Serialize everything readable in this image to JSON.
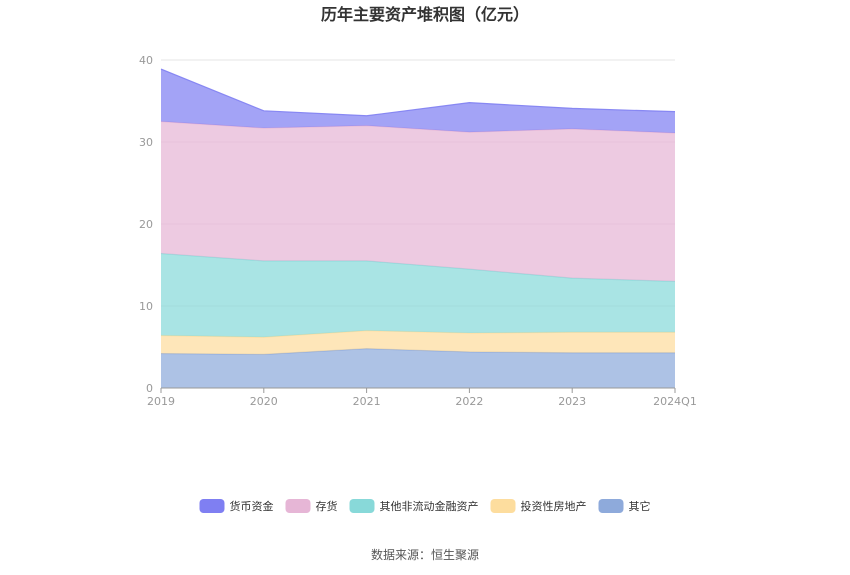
{
  "chart_data": {
    "type": "area",
    "stacked": true,
    "title": "历年主要资产堆积图（亿元）",
    "xlabel": "",
    "ylabel": "",
    "x": [
      "2019",
      "2020",
      "2021",
      "2022",
      "2023",
      "2024Q1"
    ],
    "ylim": [
      0,
      40
    ],
    "yticks": [
      "0",
      "10",
      "20",
      "30",
      "40"
    ],
    "grid": true,
    "legend_position": "bottom",
    "series": [
      {
        "name": "其它",
        "color": "#8eaadb",
        "values": [
          4.2,
          4.1,
          4.8,
          4.4,
          4.3,
          4.3
        ]
      },
      {
        "name": "投资性房地产",
        "color": "#fddd9e",
        "values": [
          2.2,
          2.1,
          2.2,
          2.3,
          2.5,
          2.5
        ]
      },
      {
        "name": "其他非流动金融资产",
        "color": "#88d9d9",
        "values": [
          10.0,
          9.3,
          8.5,
          7.8,
          6.6,
          6.2
        ]
      },
      {
        "name": "存货",
        "color": "#e6b6d6",
        "values": [
          16.1,
          16.2,
          16.5,
          16.7,
          18.2,
          18.1
        ]
      },
      {
        "name": "货币资金",
        "color": "#7f7ff2",
        "values": [
          6.4,
          2.1,
          1.2,
          3.6,
          2.5,
          2.6
        ]
      }
    ]
  },
  "footer": {
    "source": "数据来源：恒生聚源"
  }
}
